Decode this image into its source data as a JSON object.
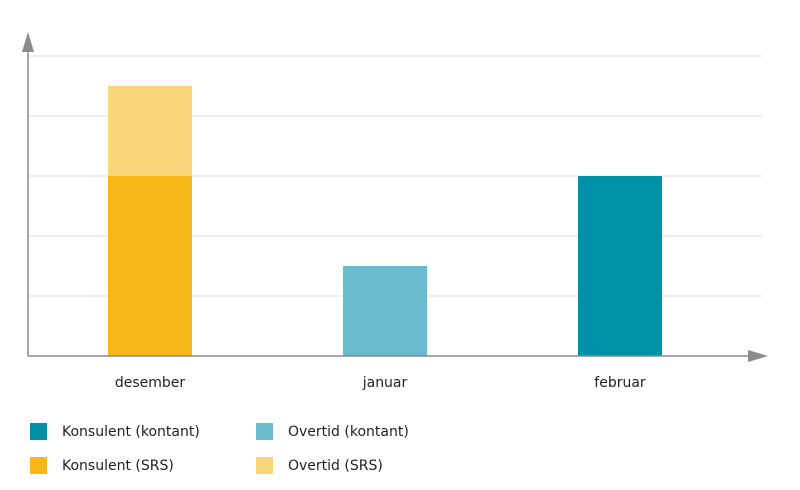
{
  "chart_data": {
    "type": "bar",
    "stacked": true,
    "categories": [
      "desember",
      "januar",
      "februar"
    ],
    "series": [
      {
        "name": "Konsulent (kontant)",
        "color": "#0090a8",
        "values": [
          0,
          0,
          3
        ]
      },
      {
        "name": "Overtid (kontant)",
        "color": "#68bccc",
        "values": [
          0,
          1.5,
          0
        ]
      },
      {
        "name": "Konsulent (SRS)",
        "color": "#f7b718",
        "values": [
          3,
          0,
          0
        ]
      },
      {
        "name": "Overtid (SRS)",
        "color": "#fad67a",
        "values": [
          1.5,
          0,
          0
        ]
      }
    ],
    "ylim": [
      0,
      5
    ],
    "yticks": [
      0,
      1,
      2,
      3,
      4,
      5
    ],
    "grid": true
  }
}
